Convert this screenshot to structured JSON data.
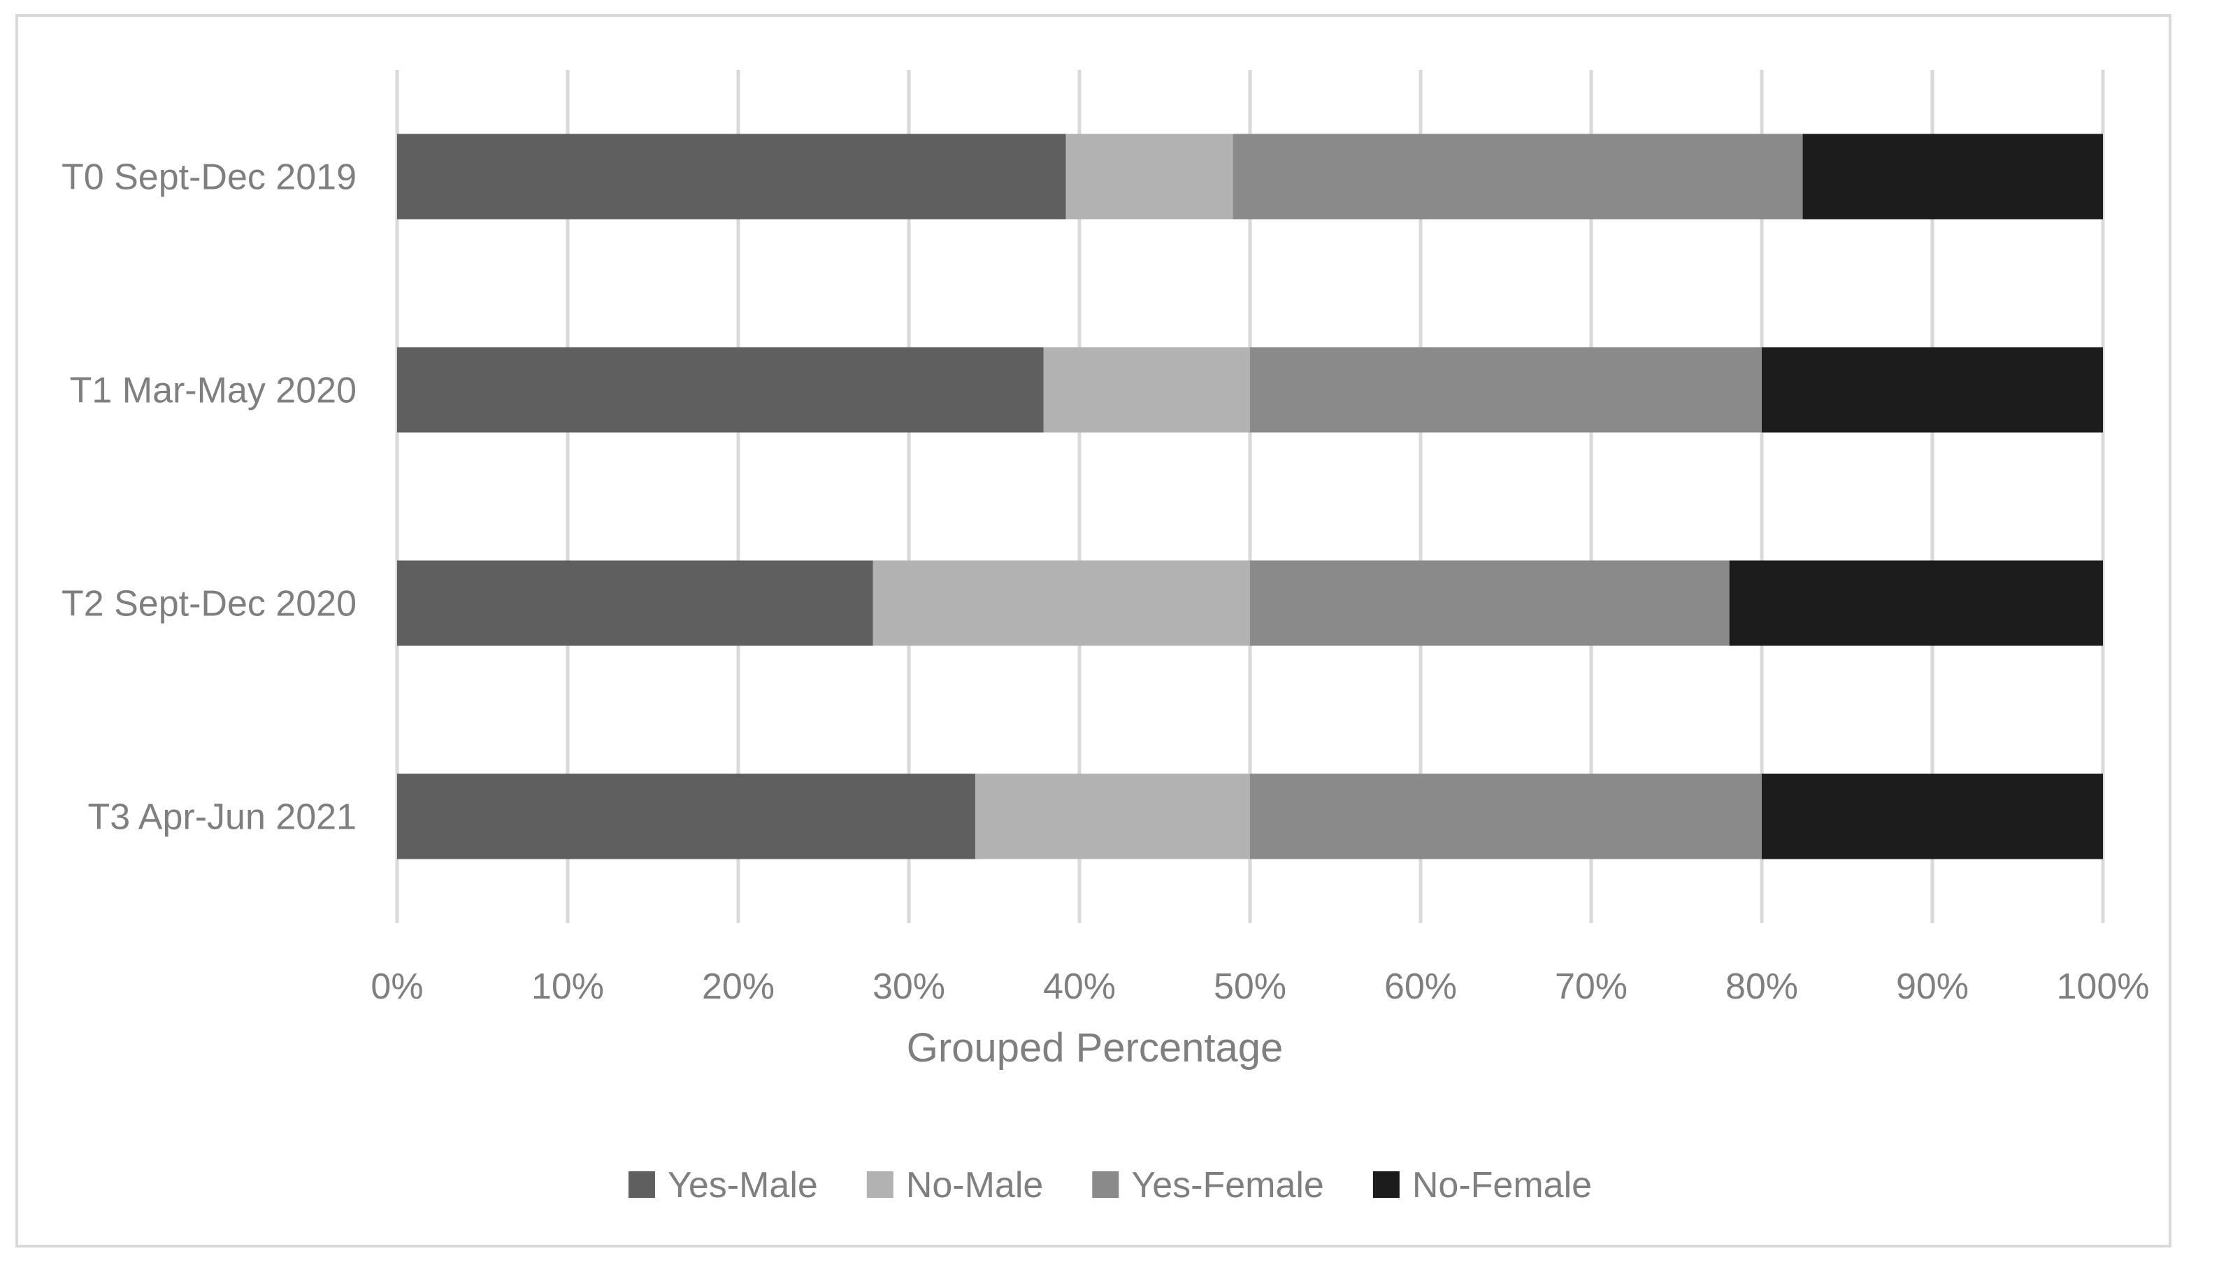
{
  "chart_data": {
    "type": "bar",
    "orientation": "horizontal",
    "stacked": "percent",
    "categories": [
      "T0 Sept-Dec 2019",
      "T1 Mar-May 2020",
      "T2 Sept-Dec 2020",
      "T3 Apr-Jun 2021"
    ],
    "series": [
      {
        "name": "Yes-Male",
        "color": "#5f5f5f",
        "values": [
          39.2,
          37.9,
          27.9,
          33.9
        ]
      },
      {
        "name": "No-Male",
        "color": "#b2b2b2",
        "values": [
          9.8,
          12.1,
          22.1,
          16.1
        ]
      },
      {
        "name": "Yes-Female",
        "color": "#8a8a8a",
        "values": [
          33.4,
          30.0,
          28.1,
          30.0
        ]
      },
      {
        "name": "No-Female",
        "color": "#1c1c1c",
        "values": [
          17.6,
          20.0,
          21.9,
          20.0
        ]
      }
    ],
    "xlabel": "Grouped Percentage",
    "ylabel": "",
    "xlim": [
      0,
      100
    ],
    "xticks": [
      "0%",
      "10%",
      "20%",
      "30%",
      "40%",
      "50%",
      "60%",
      "70%",
      "80%",
      "90%",
      "100%"
    ],
    "grid": "vertical",
    "legend_position": "bottom"
  }
}
